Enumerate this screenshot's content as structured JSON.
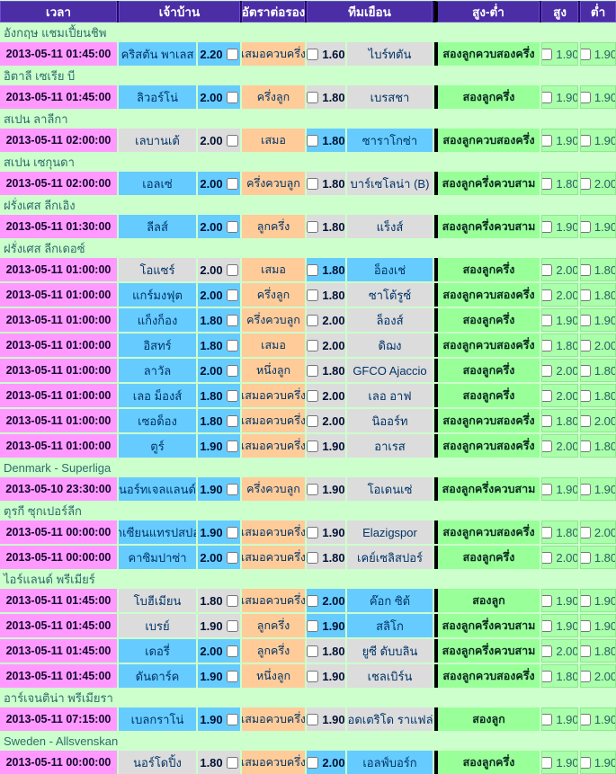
{
  "columns": [
    "เวลา",
    "เจ้าบ้าน",
    "อัตราต่อรอง",
    "ทีมเยือน",
    "สูง-ต่ำ",
    "สูง",
    "ต่ำ"
  ],
  "colors": {
    "header_bg": "#4b2da6",
    "time_bg": "#ff99ff",
    "favorite_bg": "#66ccff",
    "underdog_bg": "#dcdcdc",
    "handicap_bg": "#ffcc99",
    "over_under_bg": "#99ff99",
    "odds_value_bg": "#aaffaa",
    "section_bg": "#ccffcc",
    "divider": "#000000"
  },
  "leagues": [
    {
      "name": "อังกฤษ แชมเปี้ยนชิพ",
      "matches": [
        {
          "time": "2013-05-11 01:45:00",
          "home": "คริสตัน พาเลส",
          "home_odds": "2.20",
          "handicap": "เสมอควบครึ่ง",
          "away_odds": "1.60",
          "away": "ไบร์ทตัน",
          "favorite": "home",
          "ou": "สองลูกควบสองครึ่ง",
          "over": "1.90",
          "under": "1.90"
        }
      ]
    },
    {
      "name": "อิตาลี เซเรีย บี",
      "matches": [
        {
          "time": "2013-05-11 01:45:00",
          "home": "ลิวอร์โน่",
          "home_odds": "2.00",
          "handicap": "ครึ่งลูก",
          "away_odds": "1.80",
          "away": "เบรสชา",
          "favorite": "home",
          "ou": "สองลูกครึ่ง",
          "over": "1.90",
          "under": "1.90"
        }
      ]
    },
    {
      "name": "สเปน ลาลีกา",
      "matches": [
        {
          "time": "2013-05-11 02:00:00",
          "home": "เลบานเต้",
          "home_odds": "2.00",
          "handicap": "เสมอ",
          "away_odds": "1.80",
          "away": "ซาราโกซ่า",
          "favorite": "away",
          "ou": "สองลูกควบสองครึ่ง",
          "over": "1.90",
          "under": "1.90"
        }
      ]
    },
    {
      "name": "สเปน เซกุนดา",
      "matches": [
        {
          "time": "2013-05-11 02:00:00",
          "home": "เอลเซ่",
          "home_odds": "2.00",
          "handicap": "ครึ่งควบลูก",
          "away_odds": "1.80",
          "away": "บาร์เซโลน่า (B)",
          "favorite": "home",
          "ou": "สองลูกครึ่งควบสาม",
          "over": "1.80",
          "under": "2.00"
        }
      ]
    },
    {
      "name": "ฝรั่งเศส ลีกเอิง",
      "matches": [
        {
          "time": "2013-05-11 01:30:00",
          "home": "ลีลส์",
          "home_odds": "2.00",
          "handicap": "ลูกครึ่ง",
          "away_odds": "1.80",
          "away": "แร็งส์",
          "favorite": "home",
          "ou": "สองลูกครึ่งควบสาม",
          "over": "1.90",
          "under": "1.90"
        }
      ]
    },
    {
      "name": "ฝรั่งเศส ลีกเดอซ์",
      "matches": [
        {
          "time": "2013-05-11 01:00:00",
          "home": "โอแซร์",
          "home_odds": "2.00",
          "handicap": "เสมอ",
          "away_odds": "1.80",
          "away": "อ็องเช่",
          "favorite": "away",
          "ou": "สองลูกครึ่ง",
          "over": "2.00",
          "under": "1.80"
        },
        {
          "time": "2013-05-11 01:00:00",
          "home": "แกร์มงฟุต",
          "home_odds": "2.00",
          "handicap": "ครึ่งลูก",
          "away_odds": "1.80",
          "away": "ซาโต้รูซ์",
          "favorite": "home",
          "ou": "สองลูกควบสองครึ่ง",
          "over": "2.00",
          "under": "1.80"
        },
        {
          "time": "2013-05-11 01:00:00",
          "home": "แก็งก็อง",
          "home_odds": "1.80",
          "handicap": "ครึ่งควบลูก",
          "away_odds": "2.00",
          "away": "ล็องส์",
          "favorite": "home",
          "ou": "สองลูกครึ่ง",
          "over": "1.90",
          "under": "1.90"
        },
        {
          "time": "2013-05-11 01:00:00",
          "home": "อิสทร์",
          "home_odds": "1.80",
          "handicap": "เสมอ",
          "away_odds": "2.00",
          "away": "ดิฌง",
          "favorite": "home",
          "ou": "สองลูกควบสองครึ่ง",
          "over": "1.80",
          "under": "2.00"
        },
        {
          "time": "2013-05-11 01:00:00",
          "home": "ลาวัล",
          "home_odds": "2.00",
          "handicap": "หนึ่งลูก",
          "away_odds": "1.80",
          "away": "GFCO Ajaccio",
          "favorite": "home",
          "ou": "สองลูกครึ่ง",
          "over": "2.00",
          "under": "1.80"
        },
        {
          "time": "2013-05-11 01:00:00",
          "home": "เลอ ม็องส์",
          "home_odds": "1.80",
          "handicap": "เสมอควบครึ่ง",
          "away_odds": "2.00",
          "away": "เลอ อาฟ",
          "favorite": "home",
          "ou": "สองลูกครึ่ง",
          "over": "2.00",
          "under": "1.80"
        },
        {
          "time": "2013-05-11 01:00:00",
          "home": "เซอด็อง",
          "home_odds": "1.80",
          "handicap": "เสมอควบครึ่ง",
          "away_odds": "2.00",
          "away": "นิออร์ท",
          "favorite": "home",
          "ou": "สองลูกควบสองครึ่ง",
          "over": "1.80",
          "under": "2.00"
        },
        {
          "time": "2013-05-11 01:00:00",
          "home": "ตูร์",
          "home_odds": "1.90",
          "handicap": "เสมอควบครึ่ง",
          "away_odds": "1.90",
          "away": "อาเรส",
          "favorite": "home",
          "ou": "สองลูกควบสองครึ่ง",
          "over": "2.00",
          "under": "1.80"
        }
      ]
    },
    {
      "name": "Denmark - Superliga",
      "matches": [
        {
          "time": "2013-05-10 23:30:00",
          "home": "นอร์ทเจลแลนด์",
          "home_odds": "1.90",
          "handicap": "ครึ่งควบลูก",
          "away_odds": "1.90",
          "away": "โอเดนเซ่",
          "favorite": "home",
          "ou": "สองลูกครึ่งควบสาม",
          "over": "1.90",
          "under": "1.90"
        }
      ]
    },
    {
      "name": "ตุรกี ซุกเปอร์ลีก",
      "matches": [
        {
          "time": "2013-05-11 00:00:00",
          "home": "กาเซียนแทรปสปอร์",
          "home_odds": "1.90",
          "handicap": "เสมอควบครึ่ง",
          "away_odds": "1.90",
          "away": "Elazigspor",
          "favorite": "home",
          "ou": "สองลูกควบสองครึ่ง",
          "over": "1.80",
          "under": "2.00"
        },
        {
          "time": "2013-05-11 00:00:00",
          "home": "คาซิมปาซ่า",
          "home_odds": "2.00",
          "handicap": "เสมอควบครึ่ง",
          "away_odds": "1.80",
          "away": "เคย์เซลิสปอร์",
          "favorite": "home",
          "ou": "สองลูกครึ่ง",
          "over": "2.00",
          "under": "1.80"
        }
      ]
    },
    {
      "name": "ไอร์แลนด์ พรีเมียร์",
      "matches": [
        {
          "time": "2013-05-11 01:45:00",
          "home": "โบฮีเมียน",
          "home_odds": "1.80",
          "handicap": "เสมอควบครึ่ง",
          "away_odds": "2.00",
          "away": "ค๊อก ซิต้",
          "favorite": "away",
          "ou": "สองลูก",
          "over": "1.90",
          "under": "1.90"
        },
        {
          "time": "2013-05-11 01:45:00",
          "home": "เบรย์",
          "home_odds": "1.90",
          "handicap": "ลูกครึ่ง",
          "away_odds": "1.90",
          "away": "สลิโก",
          "favorite": "away",
          "ou": "สองลูกครึ่งควบสาม",
          "over": "1.90",
          "under": "1.90"
        },
        {
          "time": "2013-05-11 01:45:00",
          "home": "เดอรี่",
          "home_odds": "2.00",
          "handicap": "ลูกครึ่ง",
          "away_odds": "1.80",
          "away": "ยูซี ดับบลิน",
          "favorite": "home",
          "ou": "สองลูกครึ่งควบสาม",
          "over": "2.00",
          "under": "1.80"
        },
        {
          "time": "2013-05-11 01:45:00",
          "home": "ดันดาร์ค",
          "home_odds": "1.90",
          "handicap": "หนึ่งลูก",
          "away_odds": "1.90",
          "away": "เชลเบิร์น",
          "favorite": "home",
          "ou": "สองลูกควบสองครึ่ง",
          "over": "1.80",
          "under": "2.00"
        }
      ]
    },
    {
      "name": "อาร์เจนติน่า พรีเมียรา",
      "matches": [
        {
          "time": "2013-05-11 07:15:00",
          "home": "เบลกราโน่",
          "home_odds": "1.90",
          "handicap": "เสมอควบครึ่ง",
          "away_odds": "1.90",
          "away": "แอดเตริโด ราแฟล่า",
          "favorite": "home",
          "ou": "สองลูก",
          "over": "1.90",
          "under": "1.90"
        }
      ]
    },
    {
      "name": "Sweden - Allsvenskan",
      "matches": [
        {
          "time": "2013-05-11 00:00:00",
          "home": "นอร์โดปิ้ง",
          "home_odds": "1.80",
          "handicap": "เสมอควบครึ่ง",
          "away_odds": "2.00",
          "away": "เอลฟ์บอร์ก",
          "favorite": "away",
          "ou": "สองลูกครึ่ง",
          "over": "1.90",
          "under": "1.90"
        }
      ]
    }
  ]
}
